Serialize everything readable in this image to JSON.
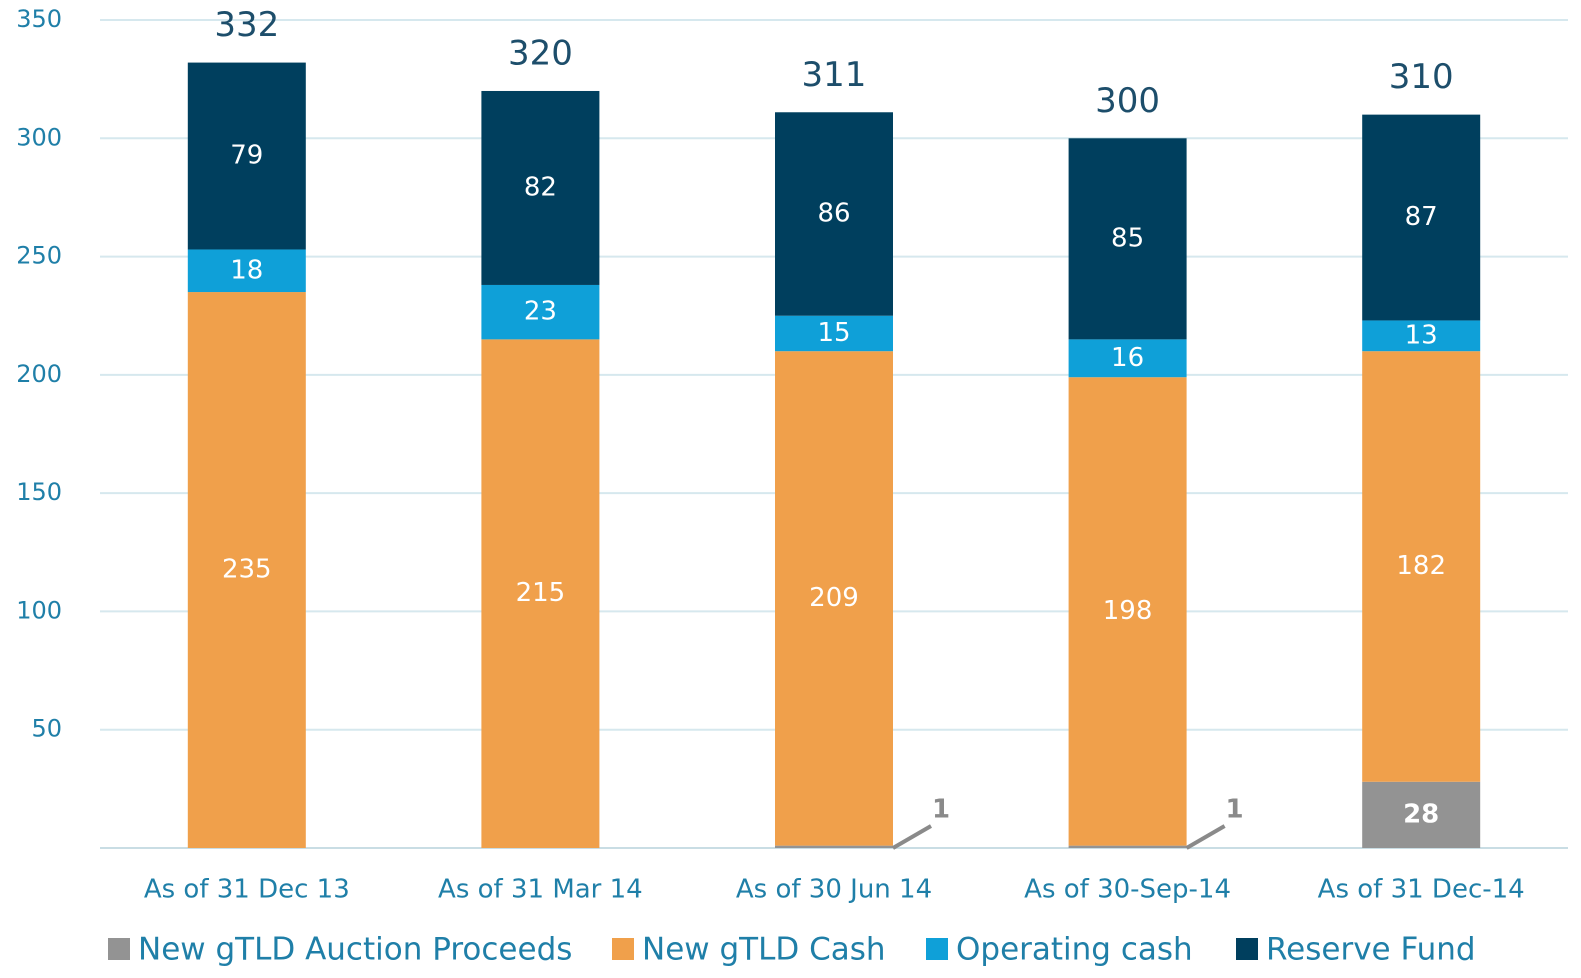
{
  "chart_data": {
    "type": "stacked_bar",
    "categories": [
      "As of 31 Dec 13",
      "As of 31 Mar 14",
      "As of 30 Jun 14",
      "As of 30-Sep-14",
      "As of 31 Dec-14"
    ],
    "series": [
      {
        "name": "New gTLD Auction Proceeds",
        "color": "#939393",
        "values": [
          null,
          null,
          1,
          1,
          28
        ]
      },
      {
        "name": "New gTLD Cash",
        "color": "#f0a04b",
        "values": [
          235,
          215,
          209,
          198,
          182
        ]
      },
      {
        "name": "Operating cash",
        "color": "#0fa0d8",
        "values": [
          18,
          23,
          15,
          16,
          13
        ]
      },
      {
        "name": "Reserve Fund",
        "color": "#003f5e",
        "values": [
          79,
          82,
          86,
          85,
          87
        ]
      }
    ],
    "totals": [
      332,
      320,
      311,
      300,
      310
    ],
    "ylim": [
      0,
      350
    ],
    "yticks": [
      50,
      100,
      150,
      200,
      250,
      300,
      350
    ],
    "grid": true,
    "legend": "bottom"
  }
}
